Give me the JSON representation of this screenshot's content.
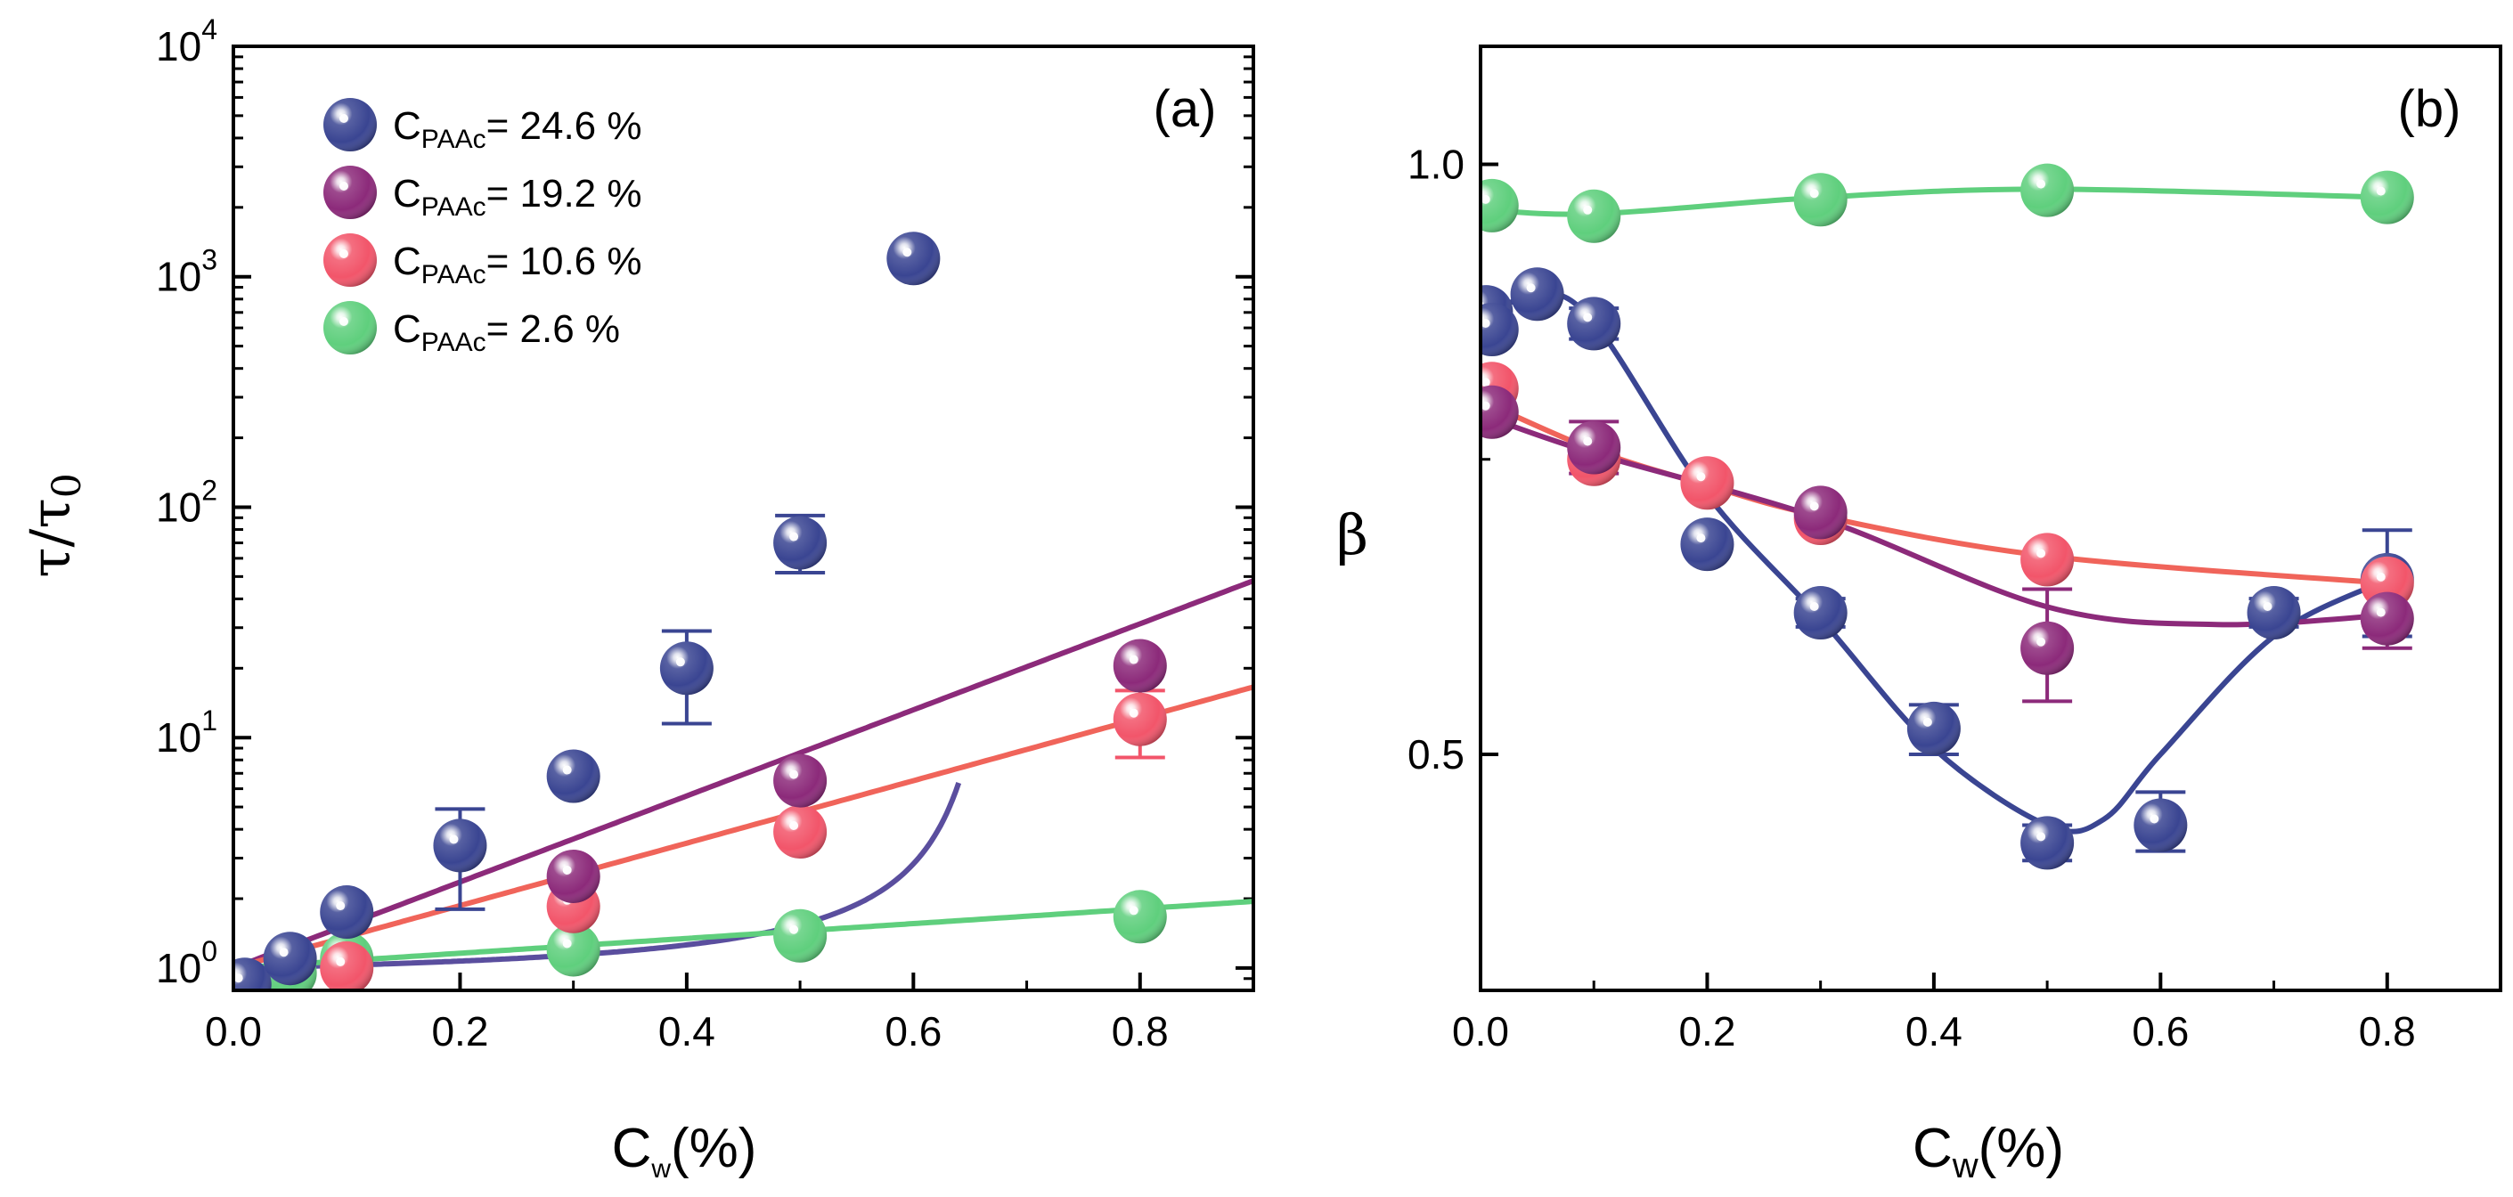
{
  "chart_data": [
    {
      "type": "scatter",
      "panel_label": "(a)",
      "xlabel": {
        "main": "C",
        "sub": "w",
        "suffix": "(%)"
      },
      "ylabel": {
        "main": "τ/τ",
        "sub": "0"
      },
      "yscale": "log",
      "xlim": [
        0,
        0.9
      ],
      "ylim": [
        0.8,
        10000
      ],
      "xticks": [
        {
          "v": 0.0,
          "label": "0.0"
        },
        {
          "v": 0.2,
          "label": "0.2"
        },
        {
          "v": 0.4,
          "label": "0.4"
        },
        {
          "v": 0.6,
          "label": "0.6"
        },
        {
          "v": 0.8,
          "label": "0.8"
        }
      ],
      "yticks": [
        {
          "v": 1,
          "base": "10",
          "exp": "0"
        },
        {
          "v": 10,
          "base": "10",
          "exp": "1"
        },
        {
          "v": 100,
          "base": "10",
          "exp": "2"
        },
        {
          "v": 1000,
          "base": "10",
          "exp": "3"
        },
        {
          "v": 10000,
          "base": "10",
          "exp": "4"
        }
      ],
      "legend": {
        "position": "top-left",
        "entries": [
          {
            "prefix": "C",
            "sub": "PAAc",
            "value": "= 24.6 %"
          },
          {
            "prefix": "C",
            "sub": "PAAc",
            "value": "= 19.2 %"
          },
          {
            "prefix": "C",
            "sub": "PAAc",
            "value": "= 10.6 %"
          },
          {
            "prefix": "C",
            "sub": "PAAc",
            "value": "= 2.6 %"
          }
        ]
      },
      "series": [
        {
          "name": "CPAAc = 24.6 %",
          "color": "#3a4592",
          "line_color": "#5a4e9e",
          "points": [
            {
              "x": 0.01,
              "y": 0.85,
              "err": null
            },
            {
              "x": 0.05,
              "y": 1.1,
              "err": null
            },
            {
              "x": 0.1,
              "y": 1.75,
              "err": null
            },
            {
              "x": 0.2,
              "y": 3.4,
              "err": [
                1.8,
                4.9
              ]
            },
            {
              "x": 0.3,
              "y": 6.8,
              "err": null
            },
            {
              "x": 0.4,
              "y": 20,
              "err": [
                11.5,
                29
              ]
            },
            {
              "x": 0.5,
              "y": 70,
              "err": [
                52,
                92
              ]
            },
            {
              "x": 0.6,
              "y": 1200,
              "err": null
            }
          ],
          "fit": {
            "kind": "vft",
            "a": 0.1735,
            "x0": 0.7
          }
        },
        {
          "name": "CPAAc = 19.2 %",
          "color": "#8c2a7a",
          "line_color": "#8c2a7a",
          "points": [
            {
              "x": 0.3,
              "y": 2.5,
              "err": null
            },
            {
              "x": 0.5,
              "y": 6.5,
              "err": null
            },
            {
              "x": 0.8,
              "y": 20.5,
              "err": null
            }
          ],
          "fit": {
            "kind": "exp",
            "k": 4.3
          }
        },
        {
          "name": "CPAAc = 10.6 %",
          "color": "#f2556a",
          "line_color": "#f0645a",
          "points": [
            {
              "x": 0.1,
              "y": 1.0,
              "err": null
            },
            {
              "x": 0.3,
              "y": 1.85,
              "err": null
            },
            {
              "x": 0.5,
              "y": 3.9,
              "err": null
            },
            {
              "x": 0.8,
              "y": 12,
              "err": [
                8.2,
                16
              ]
            }
          ],
          "fit": {
            "kind": "exp",
            "k": 3.12
          }
        },
        {
          "name": "CPAAc = 2.6 %",
          "color": "#5fcf7d",
          "line_color": "#5fcf7d",
          "points": [
            {
              "x": 0.05,
              "y": 0.95,
              "err": null
            },
            {
              "x": 0.1,
              "y": 1.1,
              "err": null
            },
            {
              "x": 0.3,
              "y": 1.2,
              "err": null
            },
            {
              "x": 0.5,
              "y": 1.38,
              "err": null
            },
            {
              "x": 0.8,
              "y": 1.67,
              "err": null
            }
          ],
          "fit": {
            "kind": "exp",
            "k": 0.74
          }
        }
      ]
    },
    {
      "type": "scatter",
      "panel_label": "(b)",
      "xlabel": {
        "main": "C",
        "sub": "w",
        "suffix": "(%)"
      },
      "ylabel": {
        "main": "β"
      },
      "yscale": "linear",
      "xlim": [
        0,
        0.9
      ],
      "ylim": [
        0.3,
        1.1
      ],
      "xticks": [
        {
          "v": 0.0,
          "label": "0.0"
        },
        {
          "v": 0.2,
          "label": "0.2"
        },
        {
          "v": 0.4,
          "label": "0.4"
        },
        {
          "v": 0.6,
          "label": "0.6"
        },
        {
          "v": 0.8,
          "label": "0.8"
        }
      ],
      "yticks": [
        {
          "v": 0.5,
          "label": "0.5"
        },
        {
          "v": 1.0,
          "label": "1.0"
        }
      ],
      "series": [
        {
          "name": "CPAAc = 2.6 %",
          "color": "#5fcf7d",
          "line_color": "#5fcf7d",
          "points": [
            {
              "x": 0.01,
              "y": 0.965,
              "err": null
            },
            {
              "x": 0.1,
              "y": 0.956,
              "err": null
            },
            {
              "x": 0.3,
              "y": 0.97,
              "err": null
            },
            {
              "x": 0.5,
              "y": 0.978,
              "err": null
            },
            {
              "x": 0.8,
              "y": 0.972,
              "err": null
            }
          ],
          "curve": [
            [
              0.0,
              0.962
            ],
            [
              0.1,
              0.958
            ],
            [
              0.3,
              0.972
            ],
            [
              0.5,
              0.979
            ],
            [
              0.8,
              0.972
            ]
          ]
        },
        {
          "name": "CPAAc = 24.6 %",
          "color": "#3a4592",
          "line_color": "#3a4592",
          "points": [
            {
              "x": 0.005,
              "y": 0.875,
              "err": null
            },
            {
              "x": 0.01,
              "y": 0.86,
              "err": null
            },
            {
              "x": 0.05,
              "y": 0.89,
              "err": null
            },
            {
              "x": 0.1,
              "y": 0.865,
              "err": [
                0.852,
                0.878
              ]
            },
            {
              "x": 0.2,
              "y": 0.678,
              "err": null
            },
            {
              "x": 0.3,
              "y": 0.62,
              "err": [
                0.608,
                0.632
              ]
            },
            {
              "x": 0.4,
              "y": 0.522,
              "err": [
                0.5,
                0.542
              ]
            },
            {
              "x": 0.5,
              "y": 0.425,
              "err": [
                0.41,
                0.44
              ]
            },
            {
              "x": 0.6,
              "y": 0.44,
              "err": [
                0.418,
                0.468
              ]
            },
            {
              "x": 0.7,
              "y": 0.62,
              "err": [
                0.608,
                0.632
              ]
            },
            {
              "x": 0.8,
              "y": 0.648,
              "err": [
                0.6,
                0.69
              ]
            }
          ],
          "curve": [
            [
              0.0,
              0.868
            ],
            [
              0.05,
              0.89
            ],
            [
              0.1,
              0.866
            ],
            [
              0.2,
              0.72
            ],
            [
              0.3,
              0.615
            ],
            [
              0.4,
              0.505
            ],
            [
              0.5,
              0.44
            ],
            [
              0.55,
              0.445
            ],
            [
              0.6,
              0.5
            ],
            [
              0.7,
              0.6
            ],
            [
              0.8,
              0.648
            ]
          ]
        },
        {
          "name": "CPAAc = 10.6 %",
          "color": "#f2556a",
          "line_color": "#f0645a",
          "points": [
            {
              "x": 0.01,
              "y": 0.81,
              "err": null
            },
            {
              "x": 0.1,
              "y": 0.75,
              "err": null
            },
            {
              "x": 0.2,
              "y": 0.73,
              "err": null
            },
            {
              "x": 0.3,
              "y": 0.7,
              "err": null
            },
            {
              "x": 0.5,
              "y": 0.665,
              "err": null
            },
            {
              "x": 0.8,
              "y": 0.645,
              "err": null
            }
          ],
          "curve": [
            [
              0.0,
              0.8
            ],
            [
              0.1,
              0.758
            ],
            [
              0.2,
              0.728
            ],
            [
              0.3,
              0.702
            ],
            [
              0.5,
              0.668
            ],
            [
              0.8,
              0.645
            ]
          ]
        },
        {
          "name": "CPAAc = 19.2 %",
          "color": "#8c2a7a",
          "line_color": "#8c2a7a",
          "points": [
            {
              "x": 0.01,
              "y": 0.79,
              "err": null
            },
            {
              "x": 0.1,
              "y": 0.76,
              "err": [
                0.738,
                0.782
              ]
            },
            {
              "x": 0.3,
              "y": 0.705,
              "err": null
            },
            {
              "x": 0.5,
              "y": 0.59,
              "err": [
                0.545,
                0.64
              ]
            },
            {
              "x": 0.8,
              "y": 0.615,
              "err": [
                0.59,
                0.64
              ]
            }
          ],
          "curve": [
            [
              0.0,
              0.788
            ],
            [
              0.1,
              0.755
            ],
            [
              0.3,
              0.7
            ],
            [
              0.5,
              0.625
            ],
            [
              0.65,
              0.61
            ],
            [
              0.8,
              0.618
            ]
          ]
        }
      ]
    }
  ]
}
